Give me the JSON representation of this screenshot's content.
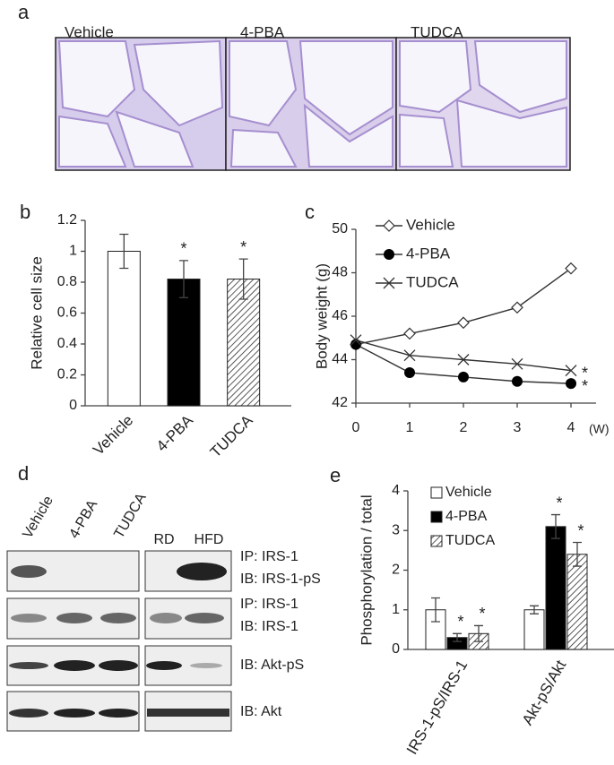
{
  "panel_a": {
    "label": "a",
    "images": [
      "Vehicle",
      "4-PBA",
      "TUDCA"
    ]
  },
  "panel_d": {
    "label": "d",
    "lanes": [
      "Vehicle",
      "4-PBA",
      "TUDCA",
      "RD",
      "HFD"
    ],
    "rows": [
      "IP: IRS-1",
      "IB: IRS-1-pS",
      "IP: IRS-1",
      "IB: IRS-1",
      "IB: Akt-pS",
      "IB: Akt"
    ]
  },
  "chart_data": [
    {
      "type": "bar",
      "label": "b",
      "ylabel": "Relative cell size",
      "categories": [
        "Vehicle",
        "4-PBA",
        "TUDCA"
      ],
      "values": [
        1,
        0.82,
        0.82
      ],
      "errors": [
        0.11,
        0.12,
        0.13
      ],
      "colors": [
        "#ffffff",
        "#000000",
        "#ffffff"
      ],
      "hatched": [
        false,
        false,
        true
      ],
      "markers": [
        null,
        "*",
        "*"
      ],
      "ylim": [
        0,
        1.2
      ],
      "yticks": [
        0,
        0.2,
        0.4,
        0.6,
        0.8,
        1,
        1.2
      ]
    },
    {
      "type": "line",
      "label": "c",
      "ylabel": "Body weight (g)",
      "xlabel": "(W)",
      "x": [
        0,
        1,
        2,
        3,
        4
      ],
      "xlim": [
        0,
        4.3
      ],
      "xticks": [
        0,
        1,
        2,
        3,
        4
      ],
      "ylim": [
        42,
        50
      ],
      "yticks": [
        42,
        44,
        46,
        48,
        50
      ],
      "series": [
        {
          "name": "Vehicle",
          "color": "#333333",
          "marker": "diamond",
          "values": [
            44.7,
            45.2,
            45.7,
            46.4,
            48.2
          ]
        },
        {
          "name": "4-PBA",
          "color": "#333333",
          "marker": "circle",
          "values": [
            44.7,
            43.4,
            43.2,
            43.0,
            42.9
          ],
          "end_label": "*"
        },
        {
          "name": "TUDCA",
          "color": "#333333",
          "marker": "cross",
          "values": [
            44.9,
            44.2,
            44.0,
            43.8,
            43.5
          ],
          "end_label": "*"
        }
      ]
    },
    {
      "type": "bar",
      "label": "e",
      "ylabel": "Phosphorylation / total",
      "categories": [
        "IRS-1-pS/IRS-1",
        "Akt-pS/Akt"
      ],
      "ylim": [
        0,
        4
      ],
      "yticks": [
        0,
        1,
        2,
        3,
        4
      ],
      "series": [
        {
          "name": "Vehicle",
          "color": "#ffffff",
          "hatched": false,
          "values": [
            1,
            1
          ],
          "errors": [
            0.3,
            0.1
          ],
          "markers": [
            null,
            null
          ]
        },
        {
          "name": "4-PBA",
          "color": "#000000",
          "hatched": false,
          "values": [
            0.3,
            3.1
          ],
          "errors": [
            0.1,
            0.3
          ],
          "markers": [
            "*",
            "*"
          ]
        },
        {
          "name": "TUDCA",
          "color": "#ffffff",
          "hatched": true,
          "values": [
            0.4,
            2.4
          ],
          "errors": [
            0.2,
            0.3
          ],
          "markers": [
            "*",
            "*"
          ]
        }
      ]
    }
  ]
}
